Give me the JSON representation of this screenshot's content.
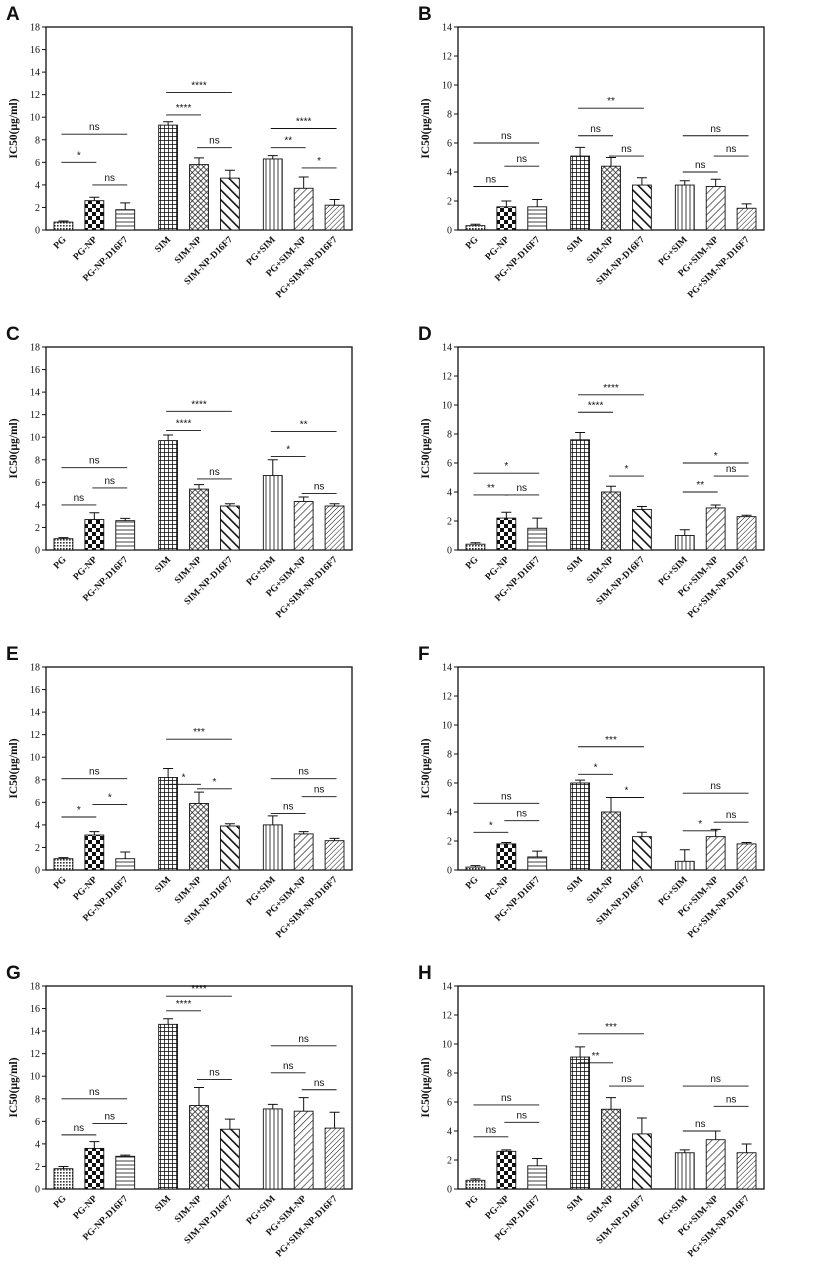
{
  "categories": [
    "PG",
    "PG-NP",
    "PG-NP-D16F7",
    "SIM",
    "SIM-NP",
    "SIM-NP-D16F7",
    "PG+SIM",
    "PG+SIM-NP",
    "PG+SIM-NP-D16F7"
  ],
  "ylabel": "IC50(μg/ml)",
  "patterns": [
    "dense-dots",
    "checker",
    "horizontal",
    "grid",
    "crosshatch-diag",
    "thick-diag",
    "vertical",
    "diag-right",
    "diag-right-dense"
  ],
  "colors": {
    "ink": "#111111",
    "background": "#ffffff"
  },
  "chart_data": [
    {
      "panel": "A",
      "type": "bar",
      "ylim": [
        0,
        18
      ],
      "yticks": [
        0,
        2,
        4,
        6,
        8,
        10,
        12,
        14,
        16,
        18
      ],
      "values": [
        0.7,
        2.6,
        1.8,
        9.3,
        5.8,
        4.6,
        6.3,
        3.7,
        2.2
      ],
      "errors": [
        0.1,
        0.3,
        0.6,
        0.3,
        0.6,
        0.7,
        0.3,
        1.0,
        0.5
      ],
      "significance": [
        {
          "from": 0,
          "to": 1,
          "y": 6.0,
          "label": "*"
        },
        {
          "from": 0,
          "to": 2,
          "y": 8.5,
          "label": "ns"
        },
        {
          "from": 1,
          "to": 2,
          "y": 4.0,
          "label": "ns"
        },
        {
          "from": 3,
          "to": 4,
          "y": 10.2,
          "label": "****"
        },
        {
          "from": 3,
          "to": 5,
          "y": 12.2,
          "label": "****"
        },
        {
          "from": 4,
          "to": 5,
          "y": 7.3,
          "label": "ns"
        },
        {
          "from": 6,
          "to": 7,
          "y": 7.3,
          "label": "**"
        },
        {
          "from": 6,
          "to": 8,
          "y": 9.0,
          "label": "****"
        },
        {
          "from": 7,
          "to": 8,
          "y": 5.5,
          "label": "*"
        }
      ]
    },
    {
      "panel": "B",
      "type": "bar",
      "ylim": [
        0,
        14
      ],
      "yticks": [
        0,
        2,
        4,
        6,
        8,
        10,
        12,
        14
      ],
      "values": [
        0.3,
        1.6,
        1.6,
        5.1,
        4.4,
        3.1,
        3.1,
        3.0,
        1.5
      ],
      "errors": [
        0.1,
        0.4,
        0.5,
        0.6,
        0.6,
        0.5,
        0.3,
        0.5,
        0.3
      ],
      "significance": [
        {
          "from": 0,
          "to": 1,
          "y": 3.0,
          "label": "ns"
        },
        {
          "from": 0,
          "to": 2,
          "y": 6.0,
          "label": "ns"
        },
        {
          "from": 1,
          "to": 2,
          "y": 4.4,
          "label": "ns"
        },
        {
          "from": 3,
          "to": 4,
          "y": 6.5,
          "label": "ns"
        },
        {
          "from": 3,
          "to": 5,
          "y": 8.4,
          "label": "**"
        },
        {
          "from": 4,
          "to": 5,
          "y": 5.1,
          "label": "ns"
        },
        {
          "from": 6,
          "to": 7,
          "y": 4.0,
          "label": "ns"
        },
        {
          "from": 6,
          "to": 8,
          "y": 6.5,
          "label": "ns"
        },
        {
          "from": 7,
          "to": 8,
          "y": 5.1,
          "label": "ns"
        }
      ]
    },
    {
      "panel": "C",
      "type": "bar",
      "ylim": [
        0,
        18
      ],
      "yticks": [
        0,
        2,
        4,
        6,
        8,
        10,
        12,
        14,
        16,
        18
      ],
      "values": [
        1.0,
        2.7,
        2.6,
        9.7,
        5.4,
        3.9,
        6.6,
        4.3,
        3.9
      ],
      "errors": [
        0.1,
        0.6,
        0.2,
        0.5,
        0.4,
        0.2,
        1.4,
        0.4,
        0.2
      ],
      "significance": [
        {
          "from": 0,
          "to": 1,
          "y": 4.0,
          "label": "ns"
        },
        {
          "from": 0,
          "to": 2,
          "y": 7.3,
          "label": "ns"
        },
        {
          "from": 1,
          "to": 2,
          "y": 5.5,
          "label": "ns"
        },
        {
          "from": 3,
          "to": 4,
          "y": 10.6,
          "label": "****"
        },
        {
          "from": 3,
          "to": 5,
          "y": 12.3,
          "label": "****"
        },
        {
          "from": 4,
          "to": 5,
          "y": 6.3,
          "label": "ns"
        },
        {
          "from": 6,
          "to": 7,
          "y": 8.3,
          "label": "*"
        },
        {
          "from": 6,
          "to": 8,
          "y": 10.5,
          "label": "**"
        },
        {
          "from": 7,
          "to": 8,
          "y": 5.0,
          "label": "ns"
        }
      ]
    },
    {
      "panel": "D",
      "type": "bar",
      "ylim": [
        0,
        14
      ],
      "yticks": [
        0,
        2,
        4,
        6,
        8,
        10,
        12,
        14
      ],
      "values": [
        0.4,
        2.2,
        1.5,
        7.6,
        4.0,
        2.8,
        1.0,
        2.9,
        2.3
      ],
      "errors": [
        0.1,
        0.4,
        0.7,
        0.5,
        0.4,
        0.2,
        0.4,
        0.2,
        0.1
      ],
      "significance": [
        {
          "from": 0,
          "to": 1,
          "y": 3.8,
          "label": "**"
        },
        {
          "from": 0,
          "to": 2,
          "y": 5.3,
          "label": "*"
        },
        {
          "from": 1,
          "to": 2,
          "y": 3.8,
          "label": "ns"
        },
        {
          "from": 3,
          "to": 4,
          "y": 9.5,
          "label": "****"
        },
        {
          "from": 3,
          "to": 5,
          "y": 10.7,
          "label": "****"
        },
        {
          "from": 4,
          "to": 5,
          "y": 5.1,
          "label": "*"
        },
        {
          "from": 6,
          "to": 7,
          "y": 4.0,
          "label": "**"
        },
        {
          "from": 6,
          "to": 8,
          "y": 6.0,
          "label": "*"
        },
        {
          "from": 7,
          "to": 8,
          "y": 5.1,
          "label": "ns"
        }
      ]
    },
    {
      "panel": "E",
      "type": "bar",
      "ylim": [
        0,
        18
      ],
      "yticks": [
        0,
        2,
        4,
        6,
        8,
        10,
        12,
        14,
        16,
        18
      ],
      "values": [
        1.0,
        3.1,
        1.0,
        8.2,
        5.9,
        3.9,
        4.0,
        3.2,
        2.6
      ],
      "errors": [
        0.1,
        0.3,
        0.6,
        0.8,
        1.0,
        0.2,
        0.8,
        0.2,
        0.2
      ],
      "significance": [
        {
          "from": 0,
          "to": 1,
          "y": 4.7,
          "label": "*"
        },
        {
          "from": 0,
          "to": 2,
          "y": 8.1,
          "label": "ns"
        },
        {
          "from": 1,
          "to": 2,
          "y": 5.8,
          "label": "*"
        },
        {
          "from": 3,
          "to": 4,
          "y": 7.6,
          "label": "*"
        },
        {
          "from": 3,
          "to": 5,
          "y": 11.6,
          "label": "***"
        },
        {
          "from": 4,
          "to": 5,
          "y": 7.2,
          "label": "*"
        },
        {
          "from": 6,
          "to": 7,
          "y": 5.0,
          "label": "ns"
        },
        {
          "from": 6,
          "to": 8,
          "y": 8.1,
          "label": "ns"
        },
        {
          "from": 7,
          "to": 8,
          "y": 6.5,
          "label": "ns"
        }
      ]
    },
    {
      "panel": "F",
      "type": "bar",
      "ylim": [
        0,
        14
      ],
      "yticks": [
        0,
        2,
        4,
        6,
        8,
        10,
        12,
        14
      ],
      "values": [
        0.2,
        1.8,
        0.9,
        6.0,
        4.0,
        2.3,
        0.6,
        2.3,
        1.8
      ],
      "errors": [
        0.1,
        0.1,
        0.4,
        0.2,
        1.0,
        0.3,
        0.8,
        0.5,
        0.1
      ],
      "significance": [
        {
          "from": 0,
          "to": 1,
          "y": 2.6,
          "label": "*"
        },
        {
          "from": 0,
          "to": 2,
          "y": 4.6,
          "label": "ns"
        },
        {
          "from": 1,
          "to": 2,
          "y": 3.4,
          "label": "ns"
        },
        {
          "from": 3,
          "to": 4,
          "y": 6.6,
          "label": "*"
        },
        {
          "from": 3,
          "to": 5,
          "y": 8.5,
          "label": "***"
        },
        {
          "from": 4,
          "to": 5,
          "y": 5.0,
          "label": "*"
        },
        {
          "from": 6,
          "to": 7,
          "y": 2.7,
          "label": "*"
        },
        {
          "from": 6,
          "to": 8,
          "y": 5.3,
          "label": "ns"
        },
        {
          "from": 7,
          "to": 8,
          "y": 3.3,
          "label": "ns"
        }
      ]
    },
    {
      "panel": "G",
      "type": "bar",
      "ylim": [
        0,
        18
      ],
      "yticks": [
        0,
        2,
        4,
        6,
        8,
        10,
        12,
        14,
        16,
        18
      ],
      "values": [
        1.8,
        3.6,
        2.9,
        14.6,
        7.4,
        5.3,
        7.1,
        6.9,
        5.4
      ],
      "errors": [
        0.2,
        0.6,
        0.1,
        0.5,
        1.6,
        0.9,
        0.4,
        1.2,
        1.4
      ],
      "significance": [
        {
          "from": 0,
          "to": 1,
          "y": 4.8,
          "label": "ns"
        },
        {
          "from": 0,
          "to": 2,
          "y": 8.0,
          "label": "ns"
        },
        {
          "from": 1,
          "to": 2,
          "y": 5.8,
          "label": "ns"
        },
        {
          "from": 3,
          "to": 4,
          "y": 15.8,
          "label": "****"
        },
        {
          "from": 3,
          "to": 5,
          "y": 17.1,
          "label": "****"
        },
        {
          "from": 4,
          "to": 5,
          "y": 9.7,
          "label": "ns"
        },
        {
          "from": 6,
          "to": 7,
          "y": 10.3,
          "label": "ns"
        },
        {
          "from": 6,
          "to": 8,
          "y": 12.7,
          "label": "ns"
        },
        {
          "from": 7,
          "to": 8,
          "y": 8.8,
          "label": "ns"
        }
      ]
    },
    {
      "panel": "H",
      "type": "bar",
      "ylim": [
        0,
        14
      ],
      "yticks": [
        0,
        2,
        4,
        6,
        8,
        10,
        12,
        14
      ],
      "values": [
        0.6,
        2.6,
        1.6,
        9.1,
        5.5,
        3.8,
        2.5,
        3.4,
        2.5
      ],
      "errors": [
        0.1,
        0.1,
        0.5,
        0.7,
        0.8,
        1.1,
        0.2,
        0.6,
        0.6
      ],
      "significance": [
        {
          "from": 0,
          "to": 1,
          "y": 3.6,
          "label": "ns"
        },
        {
          "from": 0,
          "to": 2,
          "y": 5.8,
          "label": "ns"
        },
        {
          "from": 1,
          "to": 2,
          "y": 4.6,
          "label": "ns"
        },
        {
          "from": 3,
          "to": 4,
          "y": 8.7,
          "label": "**"
        },
        {
          "from": 3,
          "to": 5,
          "y": 10.7,
          "label": "***"
        },
        {
          "from": 4,
          "to": 5,
          "y": 7.1,
          "label": "ns"
        },
        {
          "from": 6,
          "to": 7,
          "y": 4.0,
          "label": "ns"
        },
        {
          "from": 6,
          "to": 8,
          "y": 7.1,
          "label": "ns"
        },
        {
          "from": 7,
          "to": 8,
          "y": 5.7,
          "label": "ns"
        }
      ]
    }
  ]
}
